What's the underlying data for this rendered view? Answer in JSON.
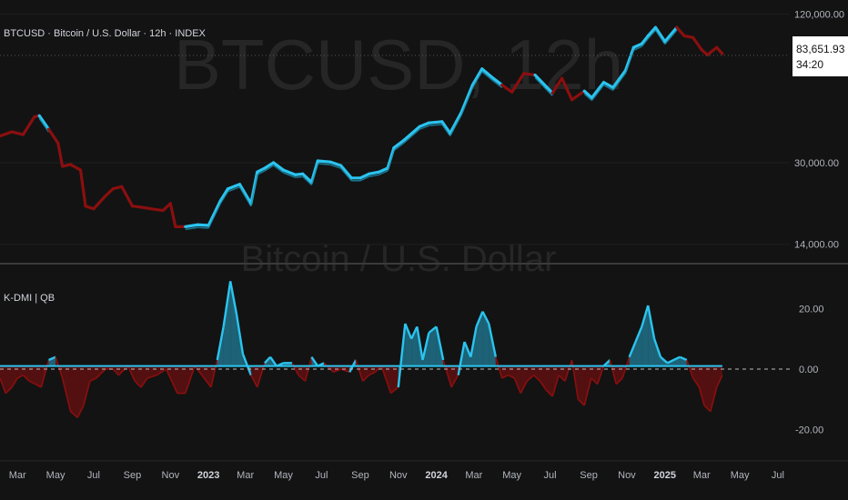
{
  "header": {
    "symbol_line": "BTCUSD · Bitcoin / U.S. Dollar · 12h · INDEX",
    "indicator_label": "K-DMI | QB"
  },
  "watermark": {
    "title": "BTCUSD, 12h",
    "subtitle": "Bitcoin / U.S. Dollar"
  },
  "price_badge": {
    "price": "83,651.93",
    "countdown": "34:20"
  },
  "colors": {
    "background": "#131313",
    "bull": "#2bc4ef",
    "bear": "#8a0f0f",
    "grid": "#2a2a2a",
    "divider": "#3a3a3a"
  },
  "chart_data": [
    {
      "type": "line",
      "scale": "log",
      "y_tick_labels": [
        "120,000.00",
        "30,000.00",
        "14,000.00"
      ],
      "y_ticks": [
        120000,
        30000,
        14000
      ],
      "ylim": [
        12300,
        128000
      ],
      "xlim": [
        "2022-02-01",
        "2025-07-20"
      ],
      "series": [
        {
          "x": [
            "2022-02-01",
            "2022-02-20",
            "2022-03-10",
            "2022-03-28",
            "2022-04-05",
            "2022-04-20",
            "2022-05-05",
            "2022-05-12",
            "2022-05-25",
            "2022-06-10",
            "2022-06-18",
            "2022-07-01",
            "2022-07-20",
            "2022-08-01",
            "2022-08-15",
            "2022-09-01",
            "2022-09-15",
            "2022-10-01",
            "2022-10-20",
            "2022-11-01",
            "2022-11-09",
            "2022-11-25",
            "2022-12-15",
            "2023-01-01",
            "2023-01-20",
            "2023-02-01",
            "2023-02-20",
            "2023-03-10",
            "2023-03-20",
            "2023-04-01",
            "2023-04-15",
            "2023-05-01",
            "2023-05-20",
            "2023-06-01",
            "2023-06-15",
            "2023-06-25",
            "2023-07-15",
            "2023-08-01",
            "2023-08-18",
            "2023-09-01",
            "2023-09-15",
            "2023-10-01",
            "2023-10-15",
            "2023-10-25",
            "2023-11-10",
            "2023-12-05",
            "2023-12-20",
            "2024-01-10",
            "2024-01-23",
            "2024-02-10",
            "2024-02-28",
            "2024-03-14",
            "2024-04-01",
            "2024-04-15",
            "2024-05-01",
            "2024-05-20",
            "2024-06-07",
            "2024-06-25",
            "2024-07-05",
            "2024-07-20",
            "2024-08-05",
            "2024-08-25",
            "2024-09-06",
            "2024-09-25",
            "2024-10-10",
            "2024-10-30",
            "2024-11-12",
            "2024-11-25",
            "2024-12-05",
            "2024-12-17",
            "2025-01-01",
            "2025-01-20",
            "2025-02-01",
            "2025-02-15",
            "2025-03-01",
            "2025-03-10",
            "2025-03-25",
            "2025-04-03"
          ],
          "values": [
            38500,
            40000,
            39000,
            46000,
            46500,
            41000,
            36000,
            29000,
            29500,
            28000,
            20000,
            19500,
            22000,
            23500,
            24000,
            20000,
            19800,
            19500,
            19200,
            20500,
            16500,
            16500,
            16800,
            16700,
            21000,
            23500,
            24500,
            20500,
            27500,
            28500,
            30000,
            28000,
            26800,
            27000,
            25000,
            30500,
            30200,
            29200,
            26000,
            26000,
            27000,
            27500,
            28500,
            34500,
            37000,
            42000,
            43500,
            44000,
            39500,
            48000,
            62000,
            72000,
            66000,
            62000,
            58000,
            69000,
            68000,
            61000,
            57500,
            66000,
            54000,
            58500,
            55000,
            63500,
            60500,
            71000,
            88000,
            91000,
            98000,
            106000,
            93000,
            106000,
            98000,
            96500,
            86000,
            82000,
            88000,
            83000
          ],
          "bull_segments_index_ranges": [
            [
              4,
              5
            ],
            [
              21,
              42
            ],
            [
              43,
              53
            ],
            [
              56,
              58
            ],
            [
              61,
              63
            ],
            [
              64,
              71
            ]
          ]
        }
      ]
    },
    {
      "type": "area",
      "label": "K-DMI | QB",
      "y_tick_labels": [
        "20.00",
        "0.00",
        "-20.00"
      ],
      "y_ticks": [
        20,
        0,
        -20
      ],
      "ylim": [
        -27,
        33
      ],
      "zero_line": 0,
      "baseline": 1,
      "xlim": [
        "2022-02-01",
        "2025-07-20"
      ],
      "x": [
        "2022-02-01",
        "2022-02-10",
        "2022-02-20",
        "2022-03-01",
        "2022-03-10",
        "2022-03-20",
        "2022-03-30",
        "2022-04-08",
        "2022-04-20",
        "2022-05-01",
        "2022-05-12",
        "2022-05-25",
        "2022-06-05",
        "2022-06-15",
        "2022-06-25",
        "2022-07-05",
        "2022-07-20",
        "2022-08-01",
        "2022-08-10",
        "2022-08-25",
        "2022-09-05",
        "2022-09-15",
        "2022-09-25",
        "2022-10-10",
        "2022-10-25",
        "2022-11-01",
        "2022-11-12",
        "2022-11-25",
        "2022-12-10",
        "2022-12-25",
        "2023-01-05",
        "2023-01-15",
        "2023-01-25",
        "2023-02-05",
        "2023-02-15",
        "2023-02-25",
        "2023-03-10",
        "2023-03-20",
        "2023-04-01",
        "2023-04-10",
        "2023-04-20",
        "2023-05-01",
        "2023-05-15",
        "2023-05-25",
        "2023-06-05",
        "2023-06-15",
        "2023-06-25",
        "2023-07-05",
        "2023-07-20",
        "2023-08-01",
        "2023-08-15",
        "2023-08-25",
        "2023-09-05",
        "2023-09-15",
        "2023-09-25",
        "2023-10-05",
        "2023-10-20",
        "2023-11-01",
        "2023-11-12",
        "2023-11-22",
        "2023-12-01",
        "2023-12-10",
        "2023-12-20",
        "2024-01-01",
        "2024-01-12",
        "2024-01-25",
        "2024-02-05",
        "2024-02-15",
        "2024-02-25",
        "2024-03-05",
        "2024-03-15",
        "2024-03-25",
        "2024-04-05",
        "2024-04-15",
        "2024-04-25",
        "2024-05-05",
        "2024-05-15",
        "2024-05-25",
        "2024-06-05",
        "2024-06-15",
        "2024-06-25",
        "2024-07-05",
        "2024-07-15",
        "2024-07-25",
        "2024-08-05",
        "2024-08-15",
        "2024-08-25",
        "2024-09-05",
        "2024-09-15",
        "2024-09-25",
        "2024-10-05",
        "2024-10-15",
        "2024-10-25",
        "2024-11-05",
        "2024-11-15",
        "2024-11-25",
        "2024-12-05",
        "2024-12-15",
        "2024-12-25",
        "2025-01-05",
        "2025-01-15",
        "2025-01-25",
        "2025-02-05",
        "2025-02-15",
        "2025-02-25",
        "2025-03-05",
        "2025-03-15",
        "2025-03-25",
        "2025-04-03"
      ],
      "values": [
        -3,
        -8,
        -6,
        -3,
        -2,
        -4,
        -5,
        -6,
        3,
        4,
        -3,
        -14,
        -16,
        -12,
        -4,
        -3,
        0,
        0,
        -2,
        1,
        -4,
        -6,
        -3,
        -2,
        0,
        -3,
        -8,
        -8,
        1,
        -3,
        -6,
        3,
        14,
        29,
        18,
        5,
        -2,
        -6,
        2,
        4,
        1,
        2,
        2,
        -2,
        -4,
        4,
        1,
        2,
        -1,
        0,
        -1,
        3,
        -4,
        -2,
        -1,
        1,
        -8,
        -6,
        15,
        10,
        14,
        3,
        12,
        14,
        3,
        -6,
        -2,
        9,
        4,
        14,
        19,
        15,
        4,
        -3,
        -2,
        -3,
        -8,
        -4,
        -2,
        -4,
        -7,
        -9,
        -2,
        -4,
        3,
        -10,
        -12,
        -3,
        -5,
        1,
        3,
        -5,
        -3,
        4,
        9,
        14,
        21,
        10,
        4,
        2,
        3,
        4,
        3,
        -3,
        -6,
        -12,
        -14,
        -6,
        -2
      ],
      "bull_color": "#2bc4ef",
      "bear_color": "#8a0f0f"
    }
  ],
  "x_axis_labels": [
    {
      "text": "Mar",
      "date": "2022-03-01",
      "bold": false
    },
    {
      "text": "May",
      "date": "2022-05-01",
      "bold": false
    },
    {
      "text": "Jul",
      "date": "2022-07-01",
      "bold": false
    },
    {
      "text": "Sep",
      "date": "2022-09-01",
      "bold": false
    },
    {
      "text": "Nov",
      "date": "2022-11-01",
      "bold": false
    },
    {
      "text": "2023",
      "date": "2023-01-01",
      "bold": true
    },
    {
      "text": "Mar",
      "date": "2023-03-01",
      "bold": false
    },
    {
      "text": "May",
      "date": "2023-05-01",
      "bold": false
    },
    {
      "text": "Jul",
      "date": "2023-07-01",
      "bold": false
    },
    {
      "text": "Sep",
      "date": "2023-09-01",
      "bold": false
    },
    {
      "text": "Nov",
      "date": "2023-11-01",
      "bold": false
    },
    {
      "text": "2024",
      "date": "2024-01-01",
      "bold": true
    },
    {
      "text": "Mar",
      "date": "2024-03-01",
      "bold": false
    },
    {
      "text": "May",
      "date": "2024-05-01",
      "bold": false
    },
    {
      "text": "Jul",
      "date": "2024-07-01",
      "bold": false
    },
    {
      "text": "Sep",
      "date": "2024-09-01",
      "bold": false
    },
    {
      "text": "Nov",
      "date": "2024-11-01",
      "bold": false
    },
    {
      "text": "2025",
      "date": "2025-01-01",
      "bold": true
    },
    {
      "text": "Mar",
      "date": "2025-03-01",
      "bold": false
    },
    {
      "text": "May",
      "date": "2025-05-01",
      "bold": false
    },
    {
      "text": "Jul",
      "date": "2025-07-01",
      "bold": false
    }
  ]
}
